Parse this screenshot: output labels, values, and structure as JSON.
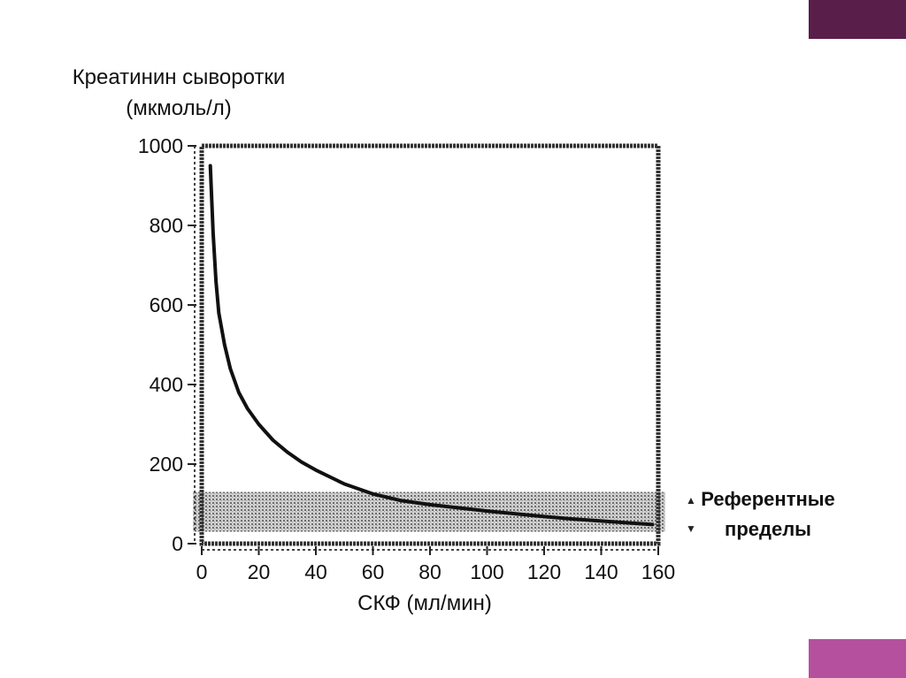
{
  "chart_data": {
    "type": "line",
    "title": "",
    "ylabel_line1": "Креатинин сыворотки",
    "ylabel_line2": "(мкмоль/л)",
    "xlabel": "СКФ (мл/мин)",
    "xlim": [
      0,
      160
    ],
    "ylim": [
      0,
      1000
    ],
    "x_ticks": [
      "0",
      "20",
      "40",
      "60",
      "80",
      "100",
      "120",
      "140",
      "160"
    ],
    "y_ticks": [
      "0",
      "200",
      "400",
      "600",
      "800",
      "1000"
    ],
    "series": [
      {
        "x": [
          3,
          4,
          5,
          6,
          8,
          10,
          13,
          16,
          20,
          25,
          30,
          35,
          40,
          50,
          60,
          70,
          80,
          90,
          100,
          110,
          120,
          130,
          140,
          150,
          158
        ],
        "y": [
          950,
          780,
          660,
          580,
          500,
          440,
          380,
          340,
          300,
          260,
          230,
          205,
          185,
          150,
          125,
          108,
          98,
          90,
          82,
          75,
          68,
          62,
          57,
          52,
          48
        ]
      }
    ],
    "reference_band": {
      "y_low": 30,
      "y_high": 130
    },
    "legend": {
      "placement": "right",
      "line1": "Референтные",
      "line2": "пределы"
    },
    "grid": false
  },
  "colors": {
    "corner_top": "#5a1e4a",
    "corner_bottom": "#b5509e",
    "frame": "#333333",
    "curve": "#111111",
    "band": "#555555"
  }
}
